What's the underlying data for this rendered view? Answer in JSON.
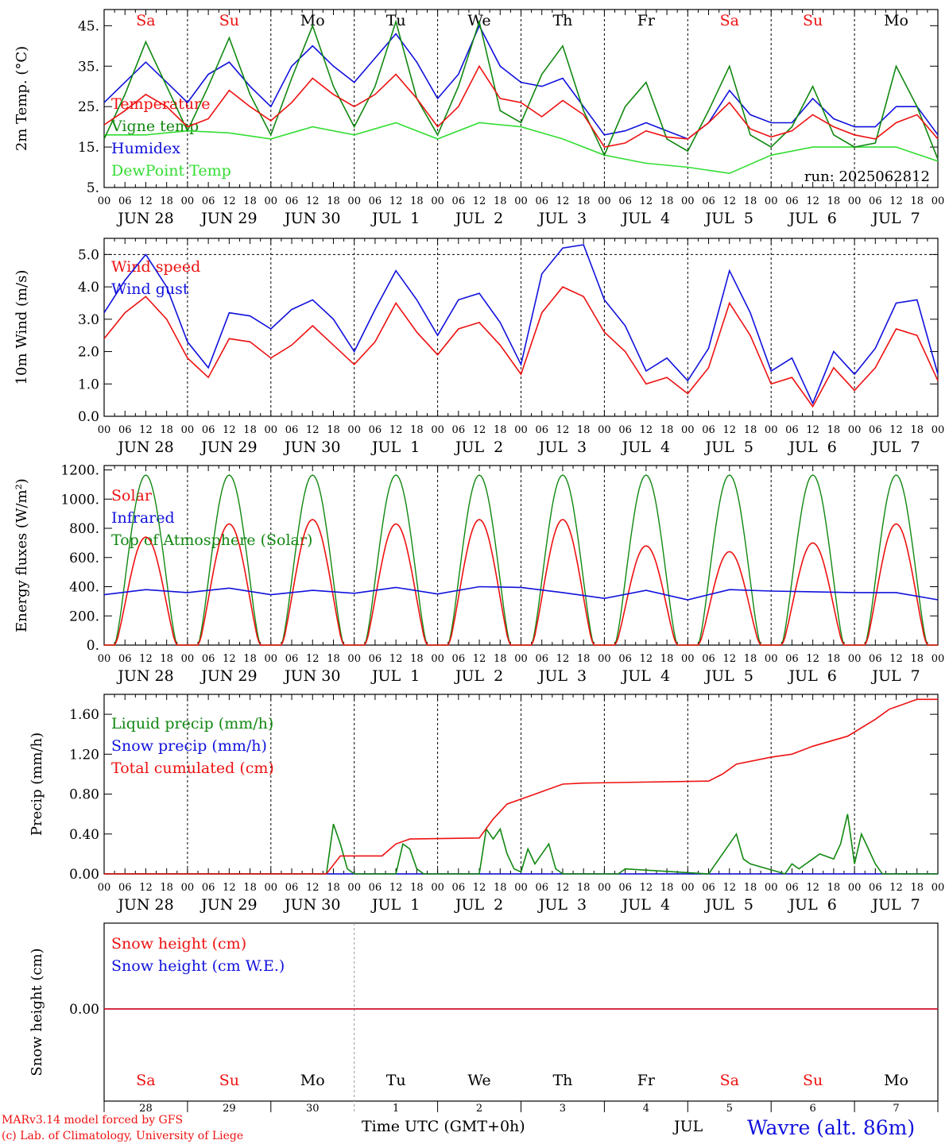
{
  "colors": {
    "red": "#ee1111",
    "blue": "#1111dd",
    "green": "#118811",
    "lightgreen": "#33dd33",
    "black": "#000000"
  },
  "days_top": [
    {
      "label": "Sa",
      "color": "red"
    },
    {
      "label": "Su",
      "color": "red"
    },
    {
      "label": "Mo",
      "color": "black"
    },
    {
      "label": "Tu",
      "color": "black"
    },
    {
      "label": "We",
      "color": "black"
    },
    {
      "label": "Th",
      "color": "black"
    },
    {
      "label": "Fr",
      "color": "black"
    },
    {
      "label": "Sa",
      "color": "red"
    },
    {
      "label": "Su",
      "color": "red"
    },
    {
      "label": "Mo",
      "color": "black"
    }
  ],
  "date_labels": [
    "JUN 28",
    "JUN 29",
    "JUN 30",
    "JUL  1",
    "JUL  2",
    "JUL  3",
    "JUL  4",
    "JUL  5",
    "JUL  6",
    "JUL  7"
  ],
  "hour_labels": [
    "00",
    "06",
    "12",
    "18"
  ],
  "chart_data": [
    {
      "type": "line",
      "ylabel": "2m Temp. (°C)",
      "ylim": [
        5,
        49
      ],
      "yticks": [
        "5.",
        "15.",
        "25.",
        "35.",
        "45."
      ],
      "annotation": "run: 2025062812",
      "x_unit": "hours from 2025-06-28 00 UTC",
      "series": [
        {
          "name": "Temperature",
          "color": "red",
          "x": [
            0,
            6,
            12,
            18,
            24,
            30,
            36,
            42,
            48,
            54,
            60,
            66,
            72,
            78,
            84,
            90,
            96,
            102,
            108,
            114,
            120,
            126,
            132,
            138,
            144,
            150,
            156,
            162,
            168,
            174,
            180,
            186,
            192,
            198,
            204,
            210,
            216,
            222,
            228,
            234,
            240
          ],
          "y": [
            20.5,
            24,
            28,
            25,
            20,
            22,
            29,
            25,
            21.5,
            26,
            32,
            28,
            25,
            28,
            33,
            27,
            20,
            25,
            35,
            27,
            26,
            22.5,
            26.5,
            23,
            15,
            16,
            19,
            17.5,
            17,
            21,
            26,
            19.5,
            17.5,
            19,
            23,
            20,
            18,
            17,
            21,
            23,
            17
          ]
        },
        {
          "name": "Vigne temp",
          "color": "green",
          "x": [
            0,
            6,
            12,
            18,
            24,
            30,
            36,
            42,
            48,
            54,
            60,
            66,
            72,
            78,
            84,
            90,
            96,
            102,
            108,
            114,
            120,
            126,
            132,
            138,
            144,
            150,
            156,
            162,
            168,
            174,
            180,
            186,
            192,
            198,
            204,
            210,
            216,
            222,
            228,
            234,
            240
          ],
          "y": [
            17,
            28,
            41,
            30,
            19,
            30,
            42,
            28,
            18,
            32,
            45,
            30,
            20,
            30,
            46,
            27,
            18,
            30,
            46,
            24,
            21,
            33,
            40,
            24,
            13,
            25,
            31,
            17,
            14,
            24,
            35,
            18,
            15,
            20,
            30,
            18,
            15,
            16,
            35,
            25,
            12
          ]
        },
        {
          "name": "Humidex",
          "color": "blue",
          "x": [
            0,
            6,
            12,
            18,
            24,
            30,
            36,
            42,
            48,
            54,
            60,
            66,
            72,
            78,
            84,
            90,
            96,
            102,
            108,
            114,
            120,
            126,
            132,
            138,
            144,
            150,
            156,
            162,
            168,
            174,
            180,
            186,
            192,
            198,
            204,
            210,
            216,
            222,
            228,
            234,
            240
          ],
          "y": [
            26,
            31,
            36,
            31,
            26,
            33,
            36,
            30,
            25,
            35,
            40,
            35,
            31,
            37,
            43,
            36,
            27,
            33,
            45,
            35,
            31,
            30,
            32,
            25,
            18,
            19,
            21,
            19,
            17,
            21,
            29,
            23,
            21,
            21,
            27,
            22,
            20,
            20,
            25,
            25,
            18
          ]
        },
        {
          "name": "DewPoint Temp",
          "color": "lightgreen",
          "x": [
            0,
            12,
            24,
            36,
            48,
            60,
            72,
            84,
            96,
            108,
            120,
            132,
            144,
            156,
            168,
            180,
            192,
            204,
            216,
            228,
            240
          ],
          "y": [
            18,
            18,
            19,
            18.5,
            17,
            20,
            18,
            21,
            17,
            21,
            20,
            17,
            13,
            11,
            10,
            8.5,
            13,
            15,
            15,
            15,
            11.5
          ]
        }
      ]
    },
    {
      "type": "line",
      "ylabel": "10m Wind (m/s)",
      "ylim": [
        0,
        5.5
      ],
      "yticks": [
        "0.0",
        "1.0",
        "2.0",
        "3.0",
        "4.0",
        "5.0"
      ],
      "x_unit": "hours from 2025-06-28 00 UTC",
      "series": [
        {
          "name": "Wind speed",
          "color": "red",
          "x": [
            0,
            6,
            12,
            18,
            24,
            30,
            36,
            42,
            48,
            54,
            60,
            66,
            72,
            78,
            84,
            90,
            96,
            102,
            108,
            114,
            120,
            126,
            132,
            138,
            144,
            150,
            156,
            162,
            168,
            174,
            180,
            186,
            192,
            198,
            204,
            210,
            216,
            222,
            228,
            234,
            240
          ],
          "y": [
            2.4,
            3.2,
            3.7,
            3.0,
            1.8,
            1.2,
            2.4,
            2.3,
            1.8,
            2.2,
            2.8,
            2.2,
            1.6,
            2.3,
            3.5,
            2.6,
            1.9,
            2.7,
            2.9,
            2.2,
            1.3,
            3.2,
            4.0,
            3.7,
            2.6,
            2.0,
            1.0,
            1.2,
            0.7,
            1.5,
            3.5,
            2.5,
            1.0,
            1.2,
            0.3,
            1.5,
            0.8,
            1.5,
            2.7,
            2.5,
            1.1
          ]
        },
        {
          "name": "Wind gust",
          "color": "blue",
          "x": [
            0,
            6,
            12,
            18,
            24,
            30,
            36,
            42,
            48,
            54,
            60,
            66,
            72,
            78,
            84,
            90,
            96,
            102,
            108,
            114,
            120,
            126,
            132,
            138,
            144,
            150,
            156,
            162,
            168,
            174,
            180,
            186,
            192,
            198,
            204,
            210,
            216,
            222,
            228,
            234,
            240
          ],
          "y": [
            3.2,
            4.2,
            5.0,
            4.0,
            2.3,
            1.5,
            3.2,
            3.1,
            2.7,
            3.3,
            3.6,
            3.0,
            2.0,
            3.3,
            4.5,
            3.6,
            2.5,
            3.6,
            3.8,
            2.9,
            1.6,
            4.4,
            5.2,
            5.3,
            3.6,
            2.8,
            1.4,
            1.8,
            1.1,
            2.1,
            4.5,
            3.2,
            1.4,
            1.8,
            0.4,
            2.0,
            1.3,
            2.1,
            3.5,
            3.6,
            1.3
          ]
        }
      ]
    },
    {
      "type": "line",
      "ylabel": "Energy fluxes (W/m²)",
      "ylim": [
        0,
        1230
      ],
      "yticks": [
        "0.",
        "200.",
        "400.",
        "600.",
        "800.",
        "1000.",
        "1200."
      ],
      "x_unit": "hours from 2025-06-28 00 UTC",
      "series": [
        {
          "name": "Solar",
          "color": "red",
          "day_peaks": [
            740,
            830,
            860,
            830,
            860,
            860,
            680,
            640,
            700,
            830
          ]
        },
        {
          "name": "Infrared",
          "color": "blue",
          "x": [
            0,
            12,
            24,
            36,
            48,
            60,
            72,
            84,
            96,
            108,
            120,
            132,
            144,
            156,
            168,
            180,
            192,
            204,
            216,
            228,
            240
          ],
          "y": [
            345,
            380,
            360,
            390,
            345,
            375,
            355,
            395,
            350,
            400,
            395,
            360,
            320,
            375,
            310,
            380,
            370,
            365,
            360,
            360,
            310
          ]
        },
        {
          "name": "Top of Atmosphere (Solar)",
          "color": "green",
          "day_peak": 1165
        }
      ]
    },
    {
      "type": "line",
      "ylabel": "Precip (mm/h)",
      "ylim": [
        0,
        1.8
      ],
      "yticks": [
        "0.00",
        "0.40",
        "0.80",
        "1.20",
        "1.60"
      ],
      "x_unit": "hours from 2025-06-28 00 UTC",
      "series": [
        {
          "name": "Liquid precip (mm/h)",
          "color": "green",
          "x": [
            0,
            64,
            66,
            68,
            70,
            72,
            84,
            86,
            88,
            90,
            92,
            108,
            110,
            112,
            114,
            116,
            118,
            120,
            122,
            124,
            126,
            128,
            130,
            132,
            134,
            148,
            150,
            174,
            176,
            178,
            180,
            182,
            184,
            186,
            196,
            198,
            200,
            202,
            204,
            206,
            210,
            212,
            214,
            216,
            218,
            220,
            222,
            224,
            240
          ],
          "y": [
            0,
            0,
            0.5,
            0.3,
            0.05,
            0,
            0,
            0.3,
            0.25,
            0.05,
            0,
            0,
            0.45,
            0.35,
            0.45,
            0.2,
            0.05,
            0.02,
            0.25,
            0.1,
            0.2,
            0.3,
            0.05,
            0,
            0,
            0,
            0.05,
            0,
            0.1,
            0.2,
            0.3,
            0.4,
            0.15,
            0.1,
            0,
            0.1,
            0.05,
            0.1,
            0.15,
            0.2,
            0.15,
            0.3,
            0.6,
            0.1,
            0.4,
            0.25,
            0.1,
            0,
            0
          ]
        },
        {
          "name": "Snow precip (mm/h)",
          "color": "blue",
          "x": [
            0,
            240
          ],
          "y": [
            0,
            0
          ]
        },
        {
          "name": "Total cumulated (cm)",
          "color": "red",
          "x": [
            0,
            64,
            68,
            72,
            80,
            84,
            88,
            108,
            112,
            116,
            124,
            132,
            138,
            174,
            178,
            182,
            192,
            198,
            204,
            214,
            222,
            226,
            234,
            240
          ],
          "y": [
            0,
            0,
            0.18,
            0.18,
            0.18,
            0.3,
            0.35,
            0.36,
            0.55,
            0.7,
            0.8,
            0.9,
            0.91,
            0.93,
            1.0,
            1.1,
            1.17,
            1.2,
            1.28,
            1.38,
            1.55,
            1.65,
            1.75,
            1.75
          ]
        }
      ]
    },
    {
      "type": "line",
      "ylabel": "Snow height (cm)",
      "yticks": [
        "0.00"
      ],
      "x_unit": "hours from 2025-06-28 00 UTC",
      "series": [
        {
          "name": "Snow height (cm)",
          "color": "red",
          "x": [
            0,
            240
          ],
          "y": [
            0,
            0
          ]
        },
        {
          "name": "Snow height (cm W.E.)",
          "color": "blue",
          "x": [
            0,
            240
          ],
          "y": [
            0,
            0
          ]
        }
      ]
    }
  ],
  "bottom": {
    "day_numbers": [
      "28",
      "29",
      "30",
      "1",
      "2",
      "3",
      "4",
      "5",
      "6",
      "7"
    ],
    "xlabel": "Time UTC (GMT+0h)",
    "month": "JUL",
    "station": "Wavre (alt. 86m)",
    "credit_line1": "MARv3.14 model forced by GFS",
    "credit_line2": "(c) Lab. of Climatology, University of Liege"
  }
}
